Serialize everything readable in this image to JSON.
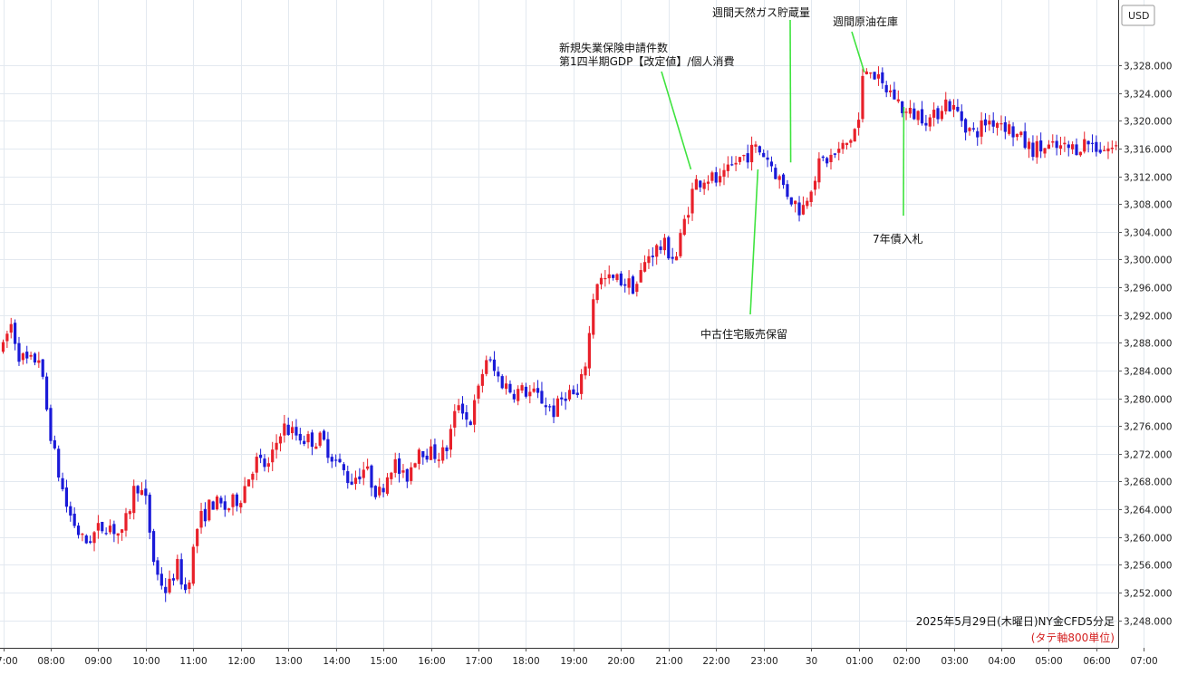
{
  "chart_data": {
    "type": "candlestick",
    "currency": "USD",
    "title": "2025年5月29日(木曜日)NY金CFD5分足",
    "subtitle": "(タテ軸800単位)",
    "y_ticks": [
      3248,
      3252,
      3256,
      3260,
      3264,
      3268,
      3272,
      3276,
      3280,
      3284,
      3288,
      3292,
      3296,
      3300,
      3304,
      3308,
      3312,
      3316,
      3320,
      3324,
      3328
    ],
    "y_tick_labels": [
      "3,248.000",
      "3,252.000",
      "3,256.000",
      "3,260.000",
      "3,264.000",
      "3,268.000",
      "3,272.000",
      "3,276.000",
      "3,280.000",
      "3,284.000",
      "3,288.000",
      "3,292.000",
      "3,296.000",
      "3,300.000",
      "3,304.000",
      "3,308.000",
      "3,312.000",
      "3,316.000",
      "3,320.000",
      "3,324.000",
      "3,328.000"
    ],
    "ylim": [
      3245.3,
      3334.2
    ],
    "x_ticks": [
      "07:00",
      "08:00",
      "09:00",
      "10:00",
      "11:00",
      "12:00",
      "13:00",
      "14:00",
      "15:00",
      "16:00",
      "17:00",
      "18:00",
      "19:00",
      "20:00",
      "21:00",
      "22:00",
      "23:00",
      "30",
      "01:00",
      "02:00",
      "03:00",
      "04:00",
      "05:00",
      "06:00",
      "07:00"
    ],
    "x_tick_hours": [
      0,
      1,
      2,
      3,
      4,
      5,
      6,
      7,
      8,
      9,
      10,
      11,
      12,
      13,
      14,
      15,
      16,
      17,
      18,
      19,
      20,
      21,
      22,
      23,
      24
    ],
    "xlim_hours": [
      0,
      24.05
    ],
    "up_color": "#e8202a",
    "down_color": "#1a1ad8",
    "grid": true,
    "annotation_line_color": "#3fe33f",
    "keyframes": [
      [
        0.0,
        3287
      ],
      [
        0.15,
        3291
      ],
      [
        0.35,
        3286
      ],
      [
        0.55,
        3285
      ],
      [
        0.75,
        3286
      ],
      [
        0.9,
        3279
      ],
      [
        1.1,
        3271
      ],
      [
        1.35,
        3264
      ],
      [
        1.7,
        3259
      ],
      [
        2.0,
        3261
      ],
      [
        2.2,
        3262
      ],
      [
        2.5,
        3260
      ],
      [
        2.8,
        3268
      ],
      [
        3.0,
        3265
      ],
      [
        3.2,
        3255
      ],
      [
        3.45,
        3252
      ],
      [
        3.65,
        3256
      ],
      [
        3.85,
        3252
      ],
      [
        4.1,
        3262
      ],
      [
        4.4,
        3265
      ],
      [
        4.7,
        3264
      ],
      [
        5.0,
        3266
      ],
      [
        5.3,
        3271
      ],
      [
        5.6,
        3270
      ],
      [
        5.85,
        3276
      ],
      [
        6.1,
        3275
      ],
      [
        6.4,
        3274
      ],
      [
        6.7,
        3274
      ],
      [
        7.0,
        3271
      ],
      [
        7.3,
        3268
      ],
      [
        7.6,
        3270
      ],
      [
        7.9,
        3266
      ],
      [
        8.2,
        3271
      ],
      [
        8.45,
        3268
      ],
      [
        8.75,
        3273
      ],
      [
        9.0,
        3272
      ],
      [
        9.3,
        3272
      ],
      [
        9.6,
        3280
      ],
      [
        9.8,
        3276
      ],
      [
        10.0,
        3281
      ],
      [
        10.15,
        3286
      ],
      [
        10.4,
        3283
      ],
      [
        10.7,
        3281
      ],
      [
        11.0,
        3281
      ],
      [
        11.3,
        3280
      ],
      [
        11.6,
        3278
      ],
      [
        11.85,
        3281
      ],
      [
        12.1,
        3280
      ],
      [
        12.3,
        3287
      ],
      [
        12.45,
        3297
      ],
      [
        12.7,
        3297
      ],
      [
        13.0,
        3297
      ],
      [
        13.3,
        3296
      ],
      [
        13.6,
        3301
      ],
      [
        13.9,
        3302
      ],
      [
        14.15,
        3300
      ],
      [
        14.35,
        3306
      ],
      [
        14.55,
        3311
      ],
      [
        14.8,
        3312
      ],
      [
        15.1,
        3311
      ],
      [
        15.4,
        3314
      ],
      [
        15.6,
        3315
      ],
      [
        15.85,
        3316
      ],
      [
        16.05,
        3315
      ],
      [
        16.3,
        3312
      ],
      [
        16.55,
        3309
      ],
      [
        16.8,
        3307
      ],
      [
        17.0,
        3311
      ],
      [
        17.2,
        3314
      ],
      [
        17.5,
        3315
      ],
      [
        17.8,
        3317
      ],
      [
        18.0,
        3320
      ],
      [
        18.1,
        3327
      ],
      [
        18.25,
        3328
      ],
      [
        18.45,
        3325
      ],
      [
        18.7,
        3324
      ],
      [
        19.0,
        3321
      ],
      [
        19.3,
        3321
      ],
      [
        19.55,
        3320
      ],
      [
        19.8,
        3323
      ],
      [
        20.1,
        3321
      ],
      [
        20.4,
        3318
      ],
      [
        20.7,
        3320
      ],
      [
        21.0,
        3320
      ],
      [
        21.3,
        3318
      ],
      [
        21.6,
        3316
      ],
      [
        21.9,
        3316
      ],
      [
        22.2,
        3316
      ],
      [
        22.5,
        3316
      ],
      [
        22.8,
        3317
      ],
      [
        23.1,
        3316
      ],
      [
        23.4,
        3316
      ],
      [
        23.7,
        3317
      ],
      [
        24.0,
        3316
      ]
    ],
    "annotations": [
      {
        "lines": [
          "新規失業保険申請件数",
          "第1四半期GDP【改定値】/個人消費"
        ],
        "target_hour": 14.47,
        "target_value": 3313.0,
        "label_pos": "above"
      },
      {
        "lines": [
          "週間天然ガス貯蔵量"
        ],
        "target_hour": 16.57,
        "target_value": 3314.0,
        "label_pos": "above"
      },
      {
        "lines": [
          "週間原油在庫"
        ],
        "target_hour": 18.12,
        "target_value": 3327.0,
        "label_pos": "above"
      },
      {
        "lines": [
          "中古住宅販売保留"
        ],
        "target_hour": 15.88,
        "target_value": 3313.0,
        "label_pos": "below"
      },
      {
        "lines": [
          "7年債入札"
        ],
        "target_hour": 18.95,
        "target_value": 3322.0,
        "label_pos": "below"
      }
    ]
  }
}
